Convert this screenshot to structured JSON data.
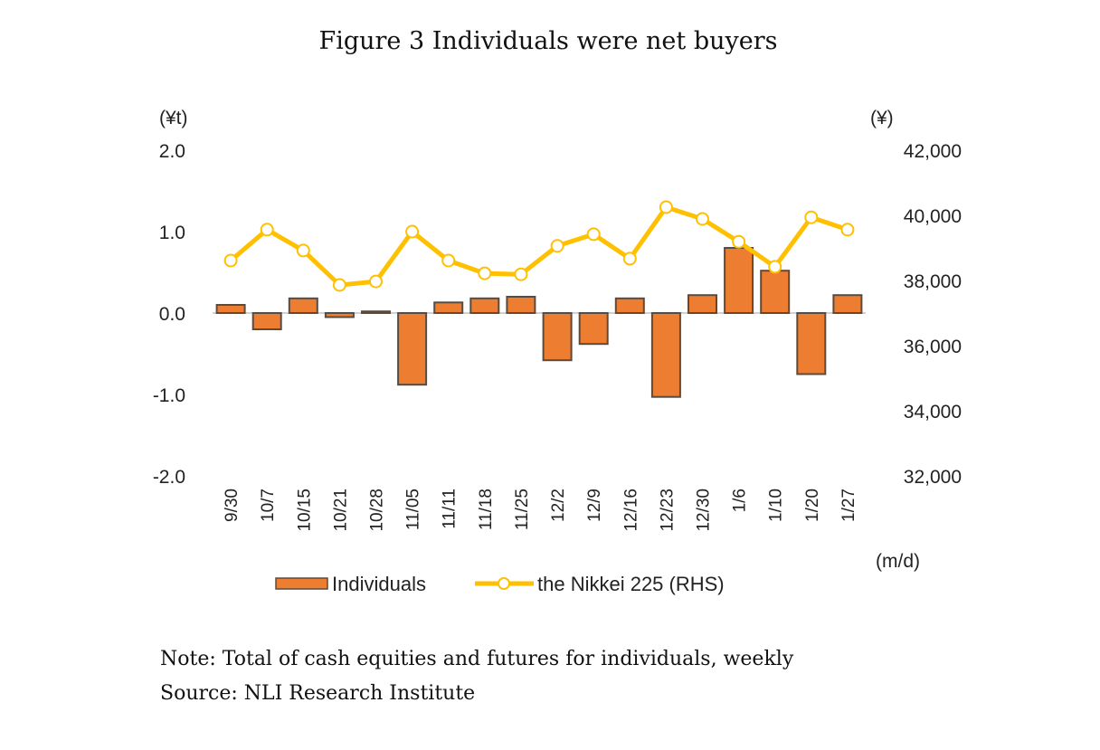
{
  "figure": {
    "title": "Figure 3 Individuals were net buyers",
    "note": "Note: Total of cash equities and futures for individuals, weekly",
    "source": "Source: NLI Research Institute"
  },
  "colors": {
    "bar_fill": "#ED7D31",
    "bar_border": "#5B4A3E",
    "line": "#FFC000",
    "marker_fill": "#FFFFFF",
    "baseline": "#D0D0D0"
  },
  "chart_data": {
    "type": "bar+line",
    "title": "Figure 3 Individuals were net buyers",
    "xlabel": "(m/d)",
    "ylabel_left": "(¥t)",
    "ylabel_right": "(¥)",
    "categories": [
      "9/30",
      "10/7",
      "10/15",
      "10/21",
      "10/28",
      "11/05",
      "11/11",
      "11/18",
      "11/25",
      "12/2",
      "12/9",
      "12/16",
      "12/23",
      "12/30",
      "1/6",
      "1/10",
      "1/20",
      "1/27"
    ],
    "series": [
      {
        "name": "Individuals",
        "type": "bar",
        "axis": "left",
        "values": [
          0.1,
          -0.2,
          0.18,
          -0.05,
          0.02,
          -0.88,
          0.13,
          0.18,
          0.2,
          -0.58,
          -0.38,
          0.18,
          -1.03,
          0.22,
          0.8,
          0.52,
          -0.75,
          0.22
        ]
      },
      {
        "name": "the Nikkei 225 (RHS)",
        "type": "line",
        "axis": "right",
        "values": [
          38610,
          39560,
          38920,
          37860,
          37970,
          39500,
          38610,
          38220,
          38190,
          39060,
          39420,
          38670,
          40250,
          39890,
          39190,
          38420,
          39940,
          39560
        ]
      }
    ],
    "ylim_left": [
      -2.0,
      2.0
    ],
    "ylim_right": [
      32000,
      42000
    ],
    "yticks_left": [
      "2.0",
      "1.0",
      "0.0",
      "-1.0",
      "-2.0"
    ],
    "yticks_right": [
      "42,000",
      "40,000",
      "38,000",
      "36,000",
      "34,000",
      "32,000"
    ],
    "grid": false,
    "legend": {
      "placement": "bottom",
      "entries": [
        "Individuals",
        "the Nikkei 225 (RHS)"
      ]
    }
  }
}
